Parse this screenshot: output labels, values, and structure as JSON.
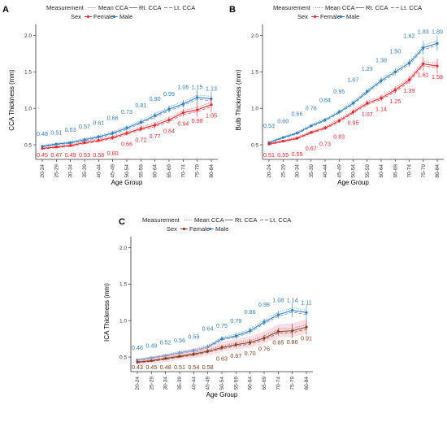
{
  "colors": {
    "male": "#2f7fc1",
    "female": "#e8252d",
    "female_c": "#8b3a1a",
    "axis": "#333333"
  },
  "legend": {
    "measurement_title": "Measurement",
    "measurement_items": [
      "Mean CCA",
      "Rt. CCA",
      "Lt. CCA"
    ],
    "sex_title": "Sex",
    "sex_items": [
      "Female",
      "Male"
    ]
  },
  "chart_data": [
    {
      "panel": "A",
      "type": "line",
      "xlabel": "Age Group",
      "ylabel": "CCA Thickness (mm)",
      "categories": [
        "20-24",
        "25-29",
        "30-34",
        "35-39",
        "40-44",
        "45-49",
        "50-54",
        "55-59",
        "60-64",
        "65-69",
        "70-74",
        "75-79",
        "80-84"
      ],
      "ylim": [
        0.3,
        2.15
      ],
      "yticks": [
        0.5,
        1.0,
        1.5,
        2.0
      ],
      "series": [
        {
          "name": "Male",
          "values": [
            0.48,
            0.51,
            0.53,
            0.57,
            0.61,
            0.66,
            0.73,
            0.81,
            0.9,
            0.99,
            1.06,
            1.15,
            1.13
          ]
        },
        {
          "name": "Female",
          "values": [
            0.45,
            0.47,
            0.49,
            0.53,
            0.56,
            0.6,
            0.66,
            0.72,
            0.77,
            0.84,
            0.94,
            0.98,
            1.05
          ]
        }
      ]
    },
    {
      "panel": "B",
      "type": "line",
      "xlabel": "Age Group",
      "ylabel": "Bulb Thickness (mm)",
      "categories": [
        "20-24",
        "25-29",
        "30-34",
        "35-39",
        "40-44",
        "45-49",
        "50-54",
        "55-59",
        "60-64",
        "65-69",
        "70-74",
        "75-79",
        "80-84"
      ],
      "ylim": [
        0.3,
        2.15
      ],
      "yticks": [
        0.5,
        1.0,
        1.5,
        2.0
      ],
      "series": [
        {
          "name": "Male",
          "values": [
            0.53,
            0.6,
            0.66,
            0.76,
            0.84,
            0.95,
            1.07,
            1.23,
            1.38,
            1.5,
            1.62,
            1.83,
            1.89
          ]
        },
        {
          "name": "Female",
          "values": [
            0.51,
            0.55,
            0.59,
            0.67,
            0.73,
            0.83,
            0.95,
            1.07,
            1.14,
            1.25,
            1.39,
            1.61,
            1.58
          ]
        }
      ]
    },
    {
      "panel": "C",
      "type": "line",
      "xlabel": "Age Group",
      "ylabel": "ICA Thickness (mm)",
      "categories": [
        "20-24",
        "25-29",
        "30-34",
        "35-39",
        "40-44",
        "45-49",
        "50-54",
        "55-59",
        "60-64",
        "65-69",
        "70-74",
        "75-79",
        "80-84"
      ],
      "ylim": [
        0.3,
        2.15
      ],
      "yticks": [
        0.5,
        1.0,
        1.5,
        2.0
      ],
      "series": [
        {
          "name": "Male",
          "values": [
            0.46,
            0.49,
            0.52,
            0.56,
            0.59,
            0.64,
            0.75,
            0.79,
            0.86,
            0.98,
            1.08,
            1.14,
            1.11
          ]
        },
        {
          "name": "Female",
          "values": [
            0.43,
            0.45,
            0.48,
            0.51,
            0.54,
            0.58,
            0.63,
            0.67,
            0.7,
            0.76,
            0.85,
            0.86,
            0.91
          ]
        }
      ]
    }
  ]
}
